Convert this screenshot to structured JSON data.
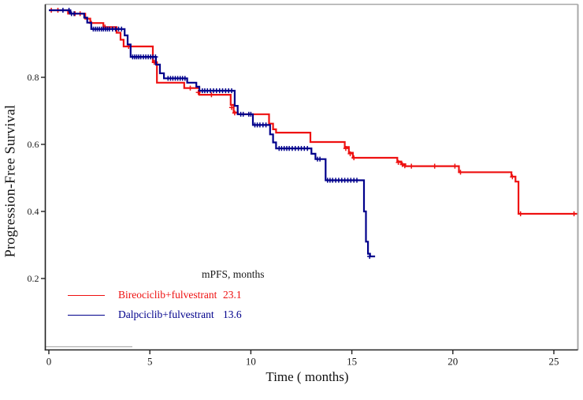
{
  "figure": {
    "background": "#ffffff",
    "border_color": "#a8a8a8",
    "axis_color": "#222222",
    "text_color": "#111111",
    "underline_color": "#b0b0b0"
  },
  "chart_data": {
    "type": "line",
    "subtype": "kaplan-meier-step",
    "title": "",
    "xlabel": "Time ( months)",
    "ylabel": "Progression-Free Survival",
    "xlim": [
      0,
      26.2
    ],
    "ylim": [
      0,
      1.0
    ],
    "grid": false,
    "x_ticks": [
      {
        "value": 0,
        "label": "0"
      },
      {
        "value": 5,
        "label": "5"
      },
      {
        "value": 10,
        "label": "10"
      },
      {
        "value": 15,
        "label": "15"
      },
      {
        "value": 20,
        "label": "20"
      },
      {
        "value": 25,
        "label": "25"
      }
    ],
    "y_ticks": [
      {
        "value": 0.2,
        "label": "0.2"
      },
      {
        "value": 0.4,
        "label": "0.4"
      },
      {
        "value": 0.6,
        "label": "0.6"
      },
      {
        "value": 0.8,
        "label": "0.8"
      }
    ],
    "legend": {
      "position": "lower-center-left",
      "header": "mPFS, months",
      "items": [
        {
          "name": "Bireociclib+fulvestrant",
          "mpfs": "23.1",
          "color": "#ee1111"
        },
        {
          "name": "Dalpciclib+fulvestrant",
          "mpfs": "13.6",
          "color": "#00008b"
        }
      ]
    },
    "series": [
      {
        "name": "Bireociclib+fulvestrant",
        "color": "#ee1111",
        "median_pfs_months": 23.1,
        "end_time": 26.15,
        "steps": [
          [
            0,
            1.0
          ],
          [
            0.95,
            0.99
          ],
          [
            1.8,
            0.975
          ],
          [
            2.05,
            0.962
          ],
          [
            2.7,
            0.95
          ],
          [
            3.35,
            0.933
          ],
          [
            3.55,
            0.912
          ],
          [
            3.7,
            0.892
          ],
          [
            5.15,
            0.845
          ],
          [
            5.35,
            0.784
          ],
          [
            6.7,
            0.768
          ],
          [
            7.45,
            0.748
          ],
          [
            9.0,
            0.718
          ],
          [
            9.15,
            0.695
          ],
          [
            9.35,
            0.69
          ],
          [
            10.9,
            0.662
          ],
          [
            11.1,
            0.645
          ],
          [
            11.25,
            0.635
          ],
          [
            12.95,
            0.607
          ],
          [
            14.65,
            0.592
          ],
          [
            14.85,
            0.575
          ],
          [
            15.05,
            0.56
          ],
          [
            17.25,
            0.549
          ],
          [
            17.45,
            0.541
          ],
          [
            17.65,
            0.535
          ],
          [
            20.3,
            0.517
          ],
          [
            22.9,
            0.504
          ],
          [
            23.1,
            0.489
          ],
          [
            23.25,
            0.393
          ]
        ],
        "censors": [
          [
            0.12,
            1.0
          ],
          [
            0.45,
            1.0
          ],
          [
            1.3,
            0.99
          ],
          [
            1.55,
            0.99
          ],
          [
            2.1,
            0.962
          ],
          [
            2.78,
            0.95
          ],
          [
            3.95,
            0.892
          ],
          [
            5.22,
            0.845
          ],
          [
            7.0,
            0.768
          ],
          [
            7.4,
            0.755
          ],
          [
            8.05,
            0.748
          ],
          [
            9.05,
            0.71
          ],
          [
            9.2,
            0.694
          ],
          [
            14.7,
            0.588
          ],
          [
            14.92,
            0.572
          ],
          [
            15.1,
            0.56
          ],
          [
            17.3,
            0.546
          ],
          [
            17.5,
            0.54
          ],
          [
            17.62,
            0.536
          ],
          [
            17.95,
            0.535
          ],
          [
            19.1,
            0.535
          ],
          [
            20.1,
            0.535
          ],
          [
            20.38,
            0.517
          ],
          [
            22.95,
            0.503
          ],
          [
            23.35,
            0.393
          ],
          [
            26.0,
            0.393
          ]
        ]
      },
      {
        "name": "Dalpciclib+fulvestrant",
        "color": "#00008b",
        "median_pfs_months": 13.6,
        "end_time": 16.15,
        "steps": [
          [
            0,
            1.0
          ],
          [
            1.05,
            0.99
          ],
          [
            1.75,
            0.978
          ],
          [
            1.9,
            0.963
          ],
          [
            2.1,
            0.944
          ],
          [
            3.75,
            0.925
          ],
          [
            3.9,
            0.898
          ],
          [
            4.05,
            0.861
          ],
          [
            5.3,
            0.838
          ],
          [
            5.5,
            0.812
          ],
          [
            5.7,
            0.797
          ],
          [
            6.85,
            0.784
          ],
          [
            7.3,
            0.772
          ],
          [
            7.45,
            0.76
          ],
          [
            9.2,
            0.715
          ],
          [
            9.35,
            0.69
          ],
          [
            10.1,
            0.658
          ],
          [
            10.95,
            0.63
          ],
          [
            11.1,
            0.606
          ],
          [
            11.25,
            0.588
          ],
          [
            13.0,
            0.572
          ],
          [
            13.2,
            0.556
          ],
          [
            13.7,
            0.493
          ],
          [
            15.6,
            0.4
          ],
          [
            15.7,
            0.31
          ],
          [
            15.8,
            0.274
          ],
          [
            15.9,
            0.266
          ]
        ],
        "censors": [
          [
            0.7,
            1.0
          ],
          [
            1.0,
            1.0
          ],
          [
            1.12,
            0.99
          ],
          [
            1.25,
            0.99
          ],
          [
            2.2,
            0.944
          ],
          [
            2.3,
            0.944
          ],
          [
            2.4,
            0.944
          ],
          [
            2.5,
            0.944
          ],
          [
            2.6,
            0.944
          ],
          [
            2.7,
            0.944
          ],
          [
            2.8,
            0.944
          ],
          [
            2.9,
            0.944
          ],
          [
            3.0,
            0.944
          ],
          [
            3.15,
            0.944
          ],
          [
            3.3,
            0.944
          ],
          [
            3.45,
            0.944
          ],
          [
            3.6,
            0.944
          ],
          [
            4.15,
            0.861
          ],
          [
            4.25,
            0.861
          ],
          [
            4.35,
            0.861
          ],
          [
            4.45,
            0.861
          ],
          [
            4.55,
            0.861
          ],
          [
            4.68,
            0.861
          ],
          [
            4.8,
            0.861
          ],
          [
            4.92,
            0.861
          ],
          [
            5.04,
            0.861
          ],
          [
            5.16,
            0.861
          ],
          [
            5.28,
            0.861
          ],
          [
            5.9,
            0.797
          ],
          [
            6.02,
            0.797
          ],
          [
            6.14,
            0.797
          ],
          [
            6.26,
            0.797
          ],
          [
            6.38,
            0.797
          ],
          [
            6.5,
            0.797
          ],
          [
            6.62,
            0.797
          ],
          [
            6.74,
            0.797
          ],
          [
            7.6,
            0.76
          ],
          [
            7.72,
            0.76
          ],
          [
            7.85,
            0.76
          ],
          [
            8.0,
            0.76
          ],
          [
            8.15,
            0.76
          ],
          [
            8.3,
            0.76
          ],
          [
            8.45,
            0.76
          ],
          [
            8.6,
            0.76
          ],
          [
            8.75,
            0.76
          ],
          [
            8.9,
            0.76
          ],
          [
            9.05,
            0.76
          ],
          [
            9.5,
            0.69
          ],
          [
            9.62,
            0.69
          ],
          [
            9.9,
            0.69
          ],
          [
            10.0,
            0.69
          ],
          [
            10.2,
            0.658
          ],
          [
            10.32,
            0.658
          ],
          [
            10.45,
            0.658
          ],
          [
            10.6,
            0.658
          ],
          [
            10.75,
            0.658
          ],
          [
            11.4,
            0.588
          ],
          [
            11.52,
            0.588
          ],
          [
            11.65,
            0.588
          ],
          [
            11.78,
            0.588
          ],
          [
            11.9,
            0.588
          ],
          [
            12.05,
            0.588
          ],
          [
            12.2,
            0.588
          ],
          [
            12.35,
            0.588
          ],
          [
            12.5,
            0.588
          ],
          [
            12.65,
            0.588
          ],
          [
            12.8,
            0.588
          ],
          [
            13.3,
            0.556
          ],
          [
            13.42,
            0.556
          ],
          [
            13.8,
            0.493
          ],
          [
            13.92,
            0.493
          ],
          [
            14.05,
            0.493
          ],
          [
            14.2,
            0.493
          ],
          [
            14.35,
            0.493
          ],
          [
            14.5,
            0.493
          ],
          [
            14.65,
            0.493
          ],
          [
            14.8,
            0.493
          ],
          [
            14.95,
            0.493
          ],
          [
            15.1,
            0.493
          ],
          [
            15.25,
            0.493
          ],
          [
            15.88,
            0.266
          ]
        ]
      }
    ]
  }
}
